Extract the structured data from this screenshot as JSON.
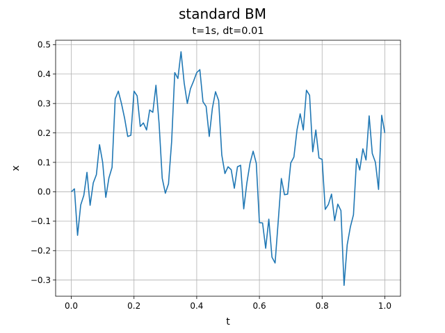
{
  "chart_data": {
    "type": "line",
    "title": "standard BM",
    "subtitle": "t=1s, dt=0.01",
    "xlabel": "t",
    "ylabel": "x",
    "xlim": [
      -0.05,
      1.05
    ],
    "ylim": [
      -0.355,
      0.515
    ],
    "xticks": [
      0.0,
      0.2,
      0.4,
      0.6,
      0.8,
      1.0
    ],
    "xtick_labels": [
      "0.0",
      "0.2",
      "0.4",
      "0.6",
      "0.8",
      "1.0"
    ],
    "yticks": [
      -0.3,
      -0.2,
      -0.1,
      0.0,
      0.1,
      0.2,
      0.3,
      0.4,
      0.5
    ],
    "ytick_labels": [
      "−0.3",
      "−0.2",
      "−0.1",
      "0.0",
      "0.1",
      "0.2",
      "0.3",
      "0.4",
      "0.5"
    ],
    "grid": true,
    "color": "#1f77b4",
    "series": [
      {
        "x": [
          0.0,
          0.01,
          0.02,
          0.03,
          0.04,
          0.05,
          0.06,
          0.07,
          0.08,
          0.09,
          0.1,
          0.11,
          0.12,
          0.13,
          0.14,
          0.15,
          0.16,
          0.17,
          0.18,
          0.19,
          0.2,
          0.21,
          0.22,
          0.23,
          0.24,
          0.25,
          0.26,
          0.27,
          0.28,
          0.29,
          0.3,
          0.31,
          0.32,
          0.33,
          0.34,
          0.35,
          0.36,
          0.37,
          0.38,
          0.39,
          0.4,
          0.41,
          0.42,
          0.43,
          0.44,
          0.45,
          0.46,
          0.47,
          0.48,
          0.49,
          0.5,
          0.51,
          0.52,
          0.53,
          0.54,
          0.55,
          0.56,
          0.57,
          0.58,
          0.59,
          0.6,
          0.61,
          0.62,
          0.63,
          0.64,
          0.65,
          0.66,
          0.67,
          0.68,
          0.69,
          0.7,
          0.71,
          0.72,
          0.73,
          0.74,
          0.75,
          0.76,
          0.77,
          0.78,
          0.79,
          0.8,
          0.81,
          0.82,
          0.83,
          0.84,
          0.85,
          0.86,
          0.87,
          0.88,
          0.89,
          0.9,
          0.91,
          0.92,
          0.93,
          0.94,
          0.95,
          0.96,
          0.97,
          0.98,
          0.99,
          1.0
        ],
        "values": [
          0.0,
          0.01,
          -0.148,
          -0.045,
          -0.012,
          0.066,
          -0.046,
          0.03,
          0.058,
          0.16,
          0.1,
          -0.019,
          0.047,
          0.083,
          0.316,
          0.342,
          0.3,
          0.25,
          0.188,
          0.192,
          0.342,
          0.326,
          0.222,
          0.234,
          0.21,
          0.278,
          0.27,
          0.362,
          0.232,
          0.046,
          -0.005,
          0.027,
          0.17,
          0.405,
          0.385,
          0.476,
          0.37,
          0.3,
          0.35,
          0.376,
          0.405,
          0.415,
          0.306,
          0.29,
          0.188,
          0.284,
          0.34,
          0.31,
          0.125,
          0.062,
          0.085,
          0.075,
          0.012,
          0.085,
          0.09,
          -0.058,
          0.03,
          0.097,
          0.138,
          0.097,
          -0.105,
          -0.106,
          -0.192,
          -0.093,
          -0.222,
          -0.242,
          -0.1,
          0.045,
          -0.01,
          -0.008,
          0.098,
          0.118,
          0.211,
          0.265,
          0.21,
          0.345,
          0.328,
          0.136,
          0.21,
          0.115,
          0.11,
          -0.06,
          -0.043,
          -0.008,
          -0.098,
          -0.042,
          -0.064,
          -0.318,
          -0.18,
          -0.12,
          -0.078,
          0.113,
          0.074,
          0.146,
          0.108,
          0.258,
          0.13,
          0.1,
          0.008,
          0.26,
          0.2
        ]
      }
    ]
  }
}
